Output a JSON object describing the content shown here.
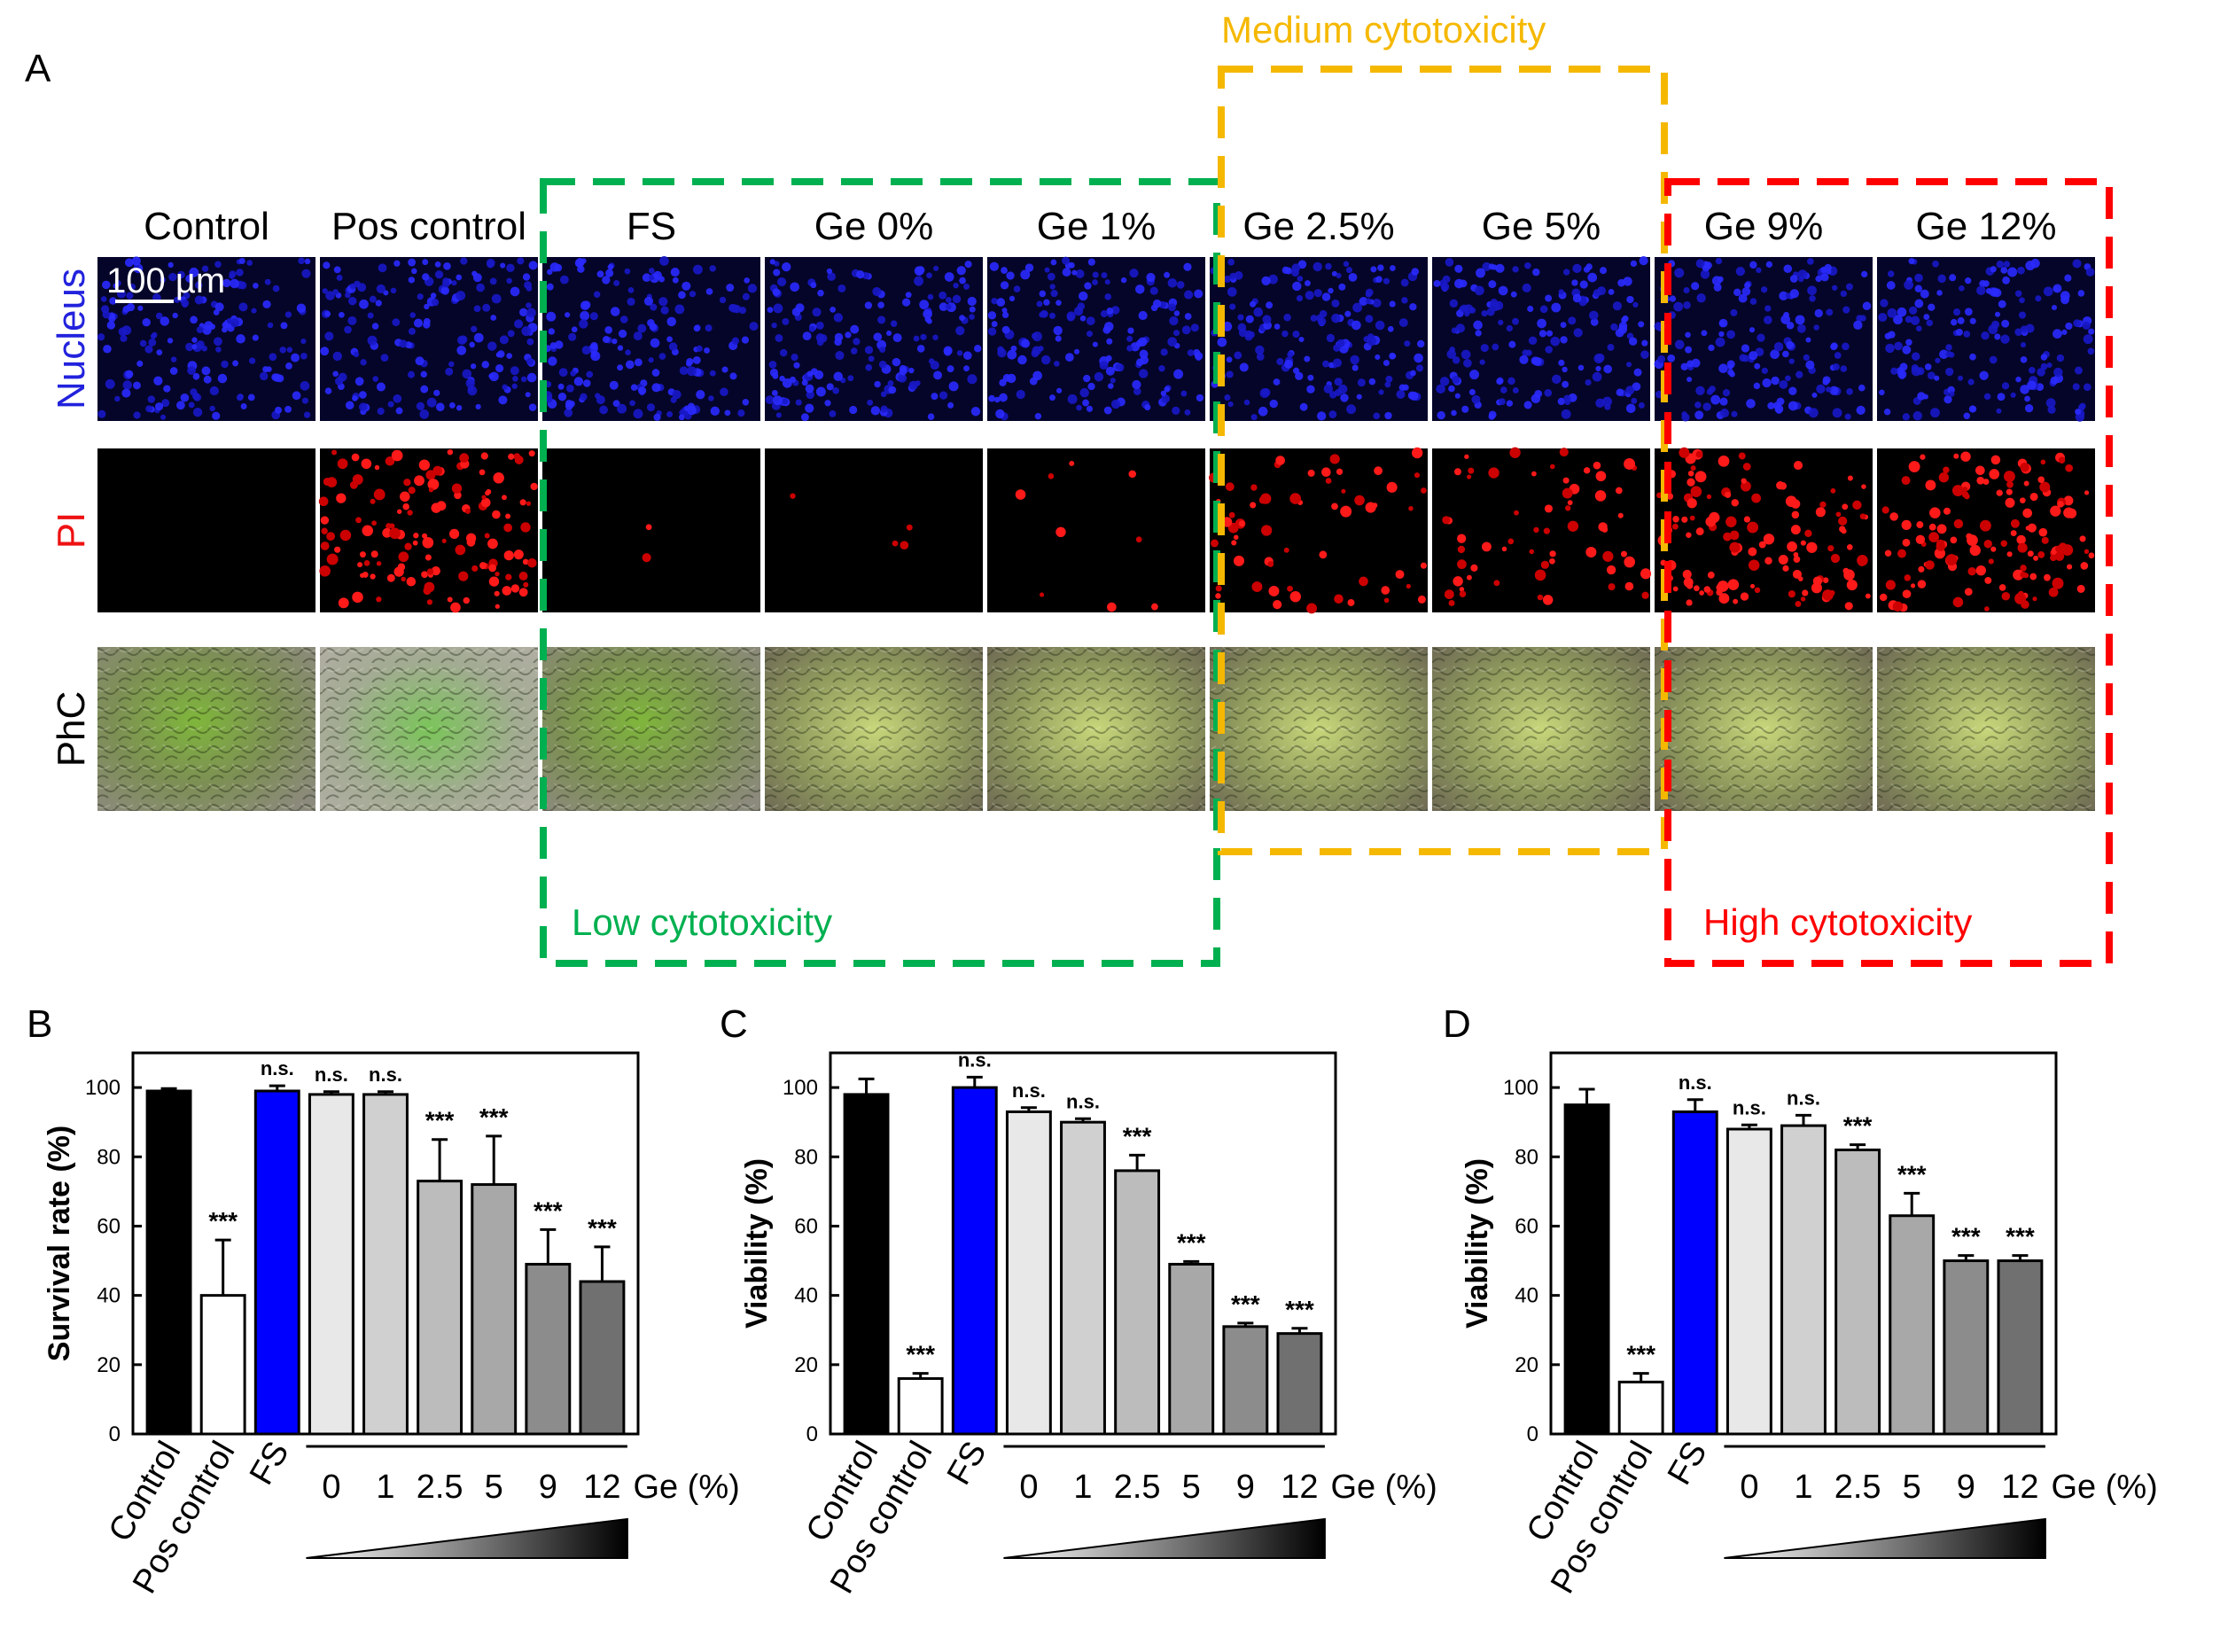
{
  "panel_a": {
    "label": "A",
    "columns": [
      "Control",
      "Pos control",
      "FS",
      "Ge 0%",
      "Ge 1%",
      "Ge 2.5%",
      "Ge 5%",
      "Ge 9%",
      "Ge 12%"
    ],
    "rows": [
      {
        "label": "Nucleus",
        "color": "#2222dd"
      },
      {
        "label": "PI",
        "color": "#ee1111"
      },
      {
        "label": "PhC",
        "color": "#000000"
      }
    ],
    "scale_bar": "100 µm",
    "groups": [
      {
        "label": "Low cytotoxicity",
        "color": "#00b050"
      },
      {
        "label": "Medium cytotoxicity",
        "color": "#f5b800"
      },
      {
        "label": "High cytotoxicity",
        "color": "#ff0000"
      }
    ],
    "dead_fraction": [
      0.0,
      0.62,
      0.01,
      0.02,
      0.04,
      0.27,
      0.28,
      0.55,
      0.62
    ]
  },
  "chart_data": [
    {
      "panel": "B",
      "type": "bar",
      "ylabel": "Survival rate (%)",
      "ylim": [
        0,
        110
      ],
      "yticks": [
        0,
        20,
        40,
        60,
        80,
        100
      ],
      "categories": [
        "Control",
        "Pos control",
        "FS",
        "0",
        "1",
        "2.5",
        "5",
        "9",
        "12"
      ],
      "rotated_labels": [
        "Control",
        "Pos control",
        "FS"
      ],
      "ge_labels": [
        "0",
        "1",
        "2.5",
        "5",
        "9",
        "12"
      ],
      "ge_axis_label": "Ge (%)",
      "values": [
        99,
        40,
        99,
        98,
        98,
        73,
        72,
        49,
        44
      ],
      "errors": [
        0.7,
        16,
        1.5,
        0.8,
        0.8,
        12,
        14,
        10,
        10
      ],
      "annotations": [
        "",
        "***",
        "n.s.",
        "n.s.",
        "n.s.",
        "***",
        "***",
        "***",
        "***"
      ],
      "colors": [
        "#000000",
        "#ffffff",
        "#0000ff",
        "#e8e8e8",
        "#d0d0d0",
        "#bcbcbc",
        "#a8a8a8",
        "#8c8c8c",
        "#707070"
      ]
    },
    {
      "panel": "C",
      "type": "bar",
      "ylabel": "Viability (%)",
      "ylim": [
        0,
        110
      ],
      "yticks": [
        0,
        20,
        40,
        60,
        80,
        100
      ],
      "categories": [
        "Control",
        "Pos control",
        "FS",
        "0",
        "1",
        "2.5",
        "5",
        "9",
        "12"
      ],
      "rotated_labels": [
        "Control",
        "Pos control",
        "FS"
      ],
      "ge_labels": [
        "0",
        "1",
        "2.5",
        "5",
        "9",
        "12"
      ],
      "ge_axis_label": "Ge (%)",
      "values": [
        98,
        16,
        100,
        93,
        90,
        76,
        49,
        31,
        29
      ],
      "errors": [
        4.5,
        1.5,
        3,
        1.2,
        1.0,
        4.5,
        0.8,
        1.0,
        1.5
      ],
      "annotations": [
        "",
        "***",
        "n.s.",
        "n.s.",
        "n.s.",
        "***",
        "***",
        "***",
        "***"
      ],
      "colors": [
        "#000000",
        "#ffffff",
        "#0000ff",
        "#e8e8e8",
        "#d0d0d0",
        "#bcbcbc",
        "#a8a8a8",
        "#8c8c8c",
        "#707070"
      ]
    },
    {
      "panel": "D",
      "type": "bar",
      "ylabel": "Viability (%)",
      "ylim": [
        0,
        110
      ],
      "yticks": [
        0,
        20,
        40,
        60,
        80,
        100
      ],
      "categories": [
        "Control",
        "Pos control",
        "FS",
        "0",
        "1",
        "2.5",
        "5",
        "9",
        "12"
      ],
      "rotated_labels": [
        "Control",
        "Pos control",
        "FS"
      ],
      "ge_labels": [
        "0",
        "1",
        "2.5",
        "5",
        "9",
        "12"
      ],
      "ge_axis_label": "Ge (%)",
      "values": [
        95,
        15,
        93,
        88,
        89,
        82,
        63,
        50,
        50
      ],
      "errors": [
        4.5,
        2.5,
        3.5,
        1.2,
        3.0,
        1.5,
        6.5,
        1.5,
        1.5
      ],
      "annotations": [
        "",
        "***",
        "n.s.",
        "n.s.",
        "n.s.",
        "***",
        "***",
        "***",
        "***"
      ],
      "colors": [
        "#000000",
        "#ffffff",
        "#0000ff",
        "#e8e8e8",
        "#d0d0d0",
        "#bcbcbc",
        "#a8a8a8",
        "#8c8c8c",
        "#707070"
      ]
    }
  ]
}
